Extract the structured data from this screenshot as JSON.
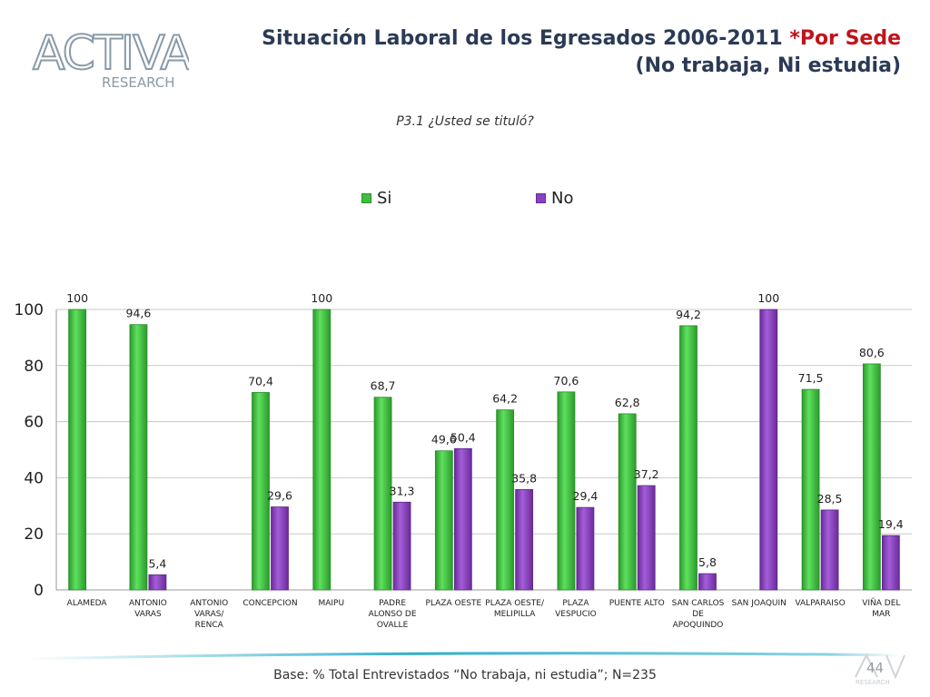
{
  "logo": {
    "word": "ACTIVA",
    "sub": "RESEARCH"
  },
  "header": {
    "title_main": "Situación Laboral de los Egresados 2006-2011 ",
    "title_accent": "*Por Sede",
    "title_line2": "(No trabaja, Ni estudia)"
  },
  "colors": {
    "si": "#3cbf3c",
    "no": "#8b3fc2",
    "title": "#2b3a55",
    "accent": "#c0141c",
    "footer": "#17a5c8"
  },
  "chart_data": {
    "type": "bar",
    "title": "P3.1 ¿Usted se tituló?",
    "categories": [
      [
        "ALAMEDA"
      ],
      [
        "ANTONIO",
        "VARAS"
      ],
      [
        "ANTONIO",
        "VARAS/",
        "RENCA"
      ],
      [
        "CONCEPCION"
      ],
      [
        "MAIPU"
      ],
      [
        "PADRE",
        "ALONSO DE",
        "OVALLE"
      ],
      [
        "PLAZA OESTE"
      ],
      [
        "PLAZA OESTE/",
        "MELIPILLA"
      ],
      [
        "PLAZA",
        "VESPUCIO"
      ],
      [
        "PUENTE ALTO"
      ],
      [
        "SAN CARLOS",
        "DE",
        "APOQUINDO"
      ],
      [
        "SAN JOAQUIN"
      ],
      [
        "VALPARAISO"
      ],
      [
        "VIÑA DEL",
        "MAR"
      ]
    ],
    "series": [
      {
        "name": "Si",
        "values": [
          100,
          94.6,
          null,
          70.4,
          100,
          68.7,
          49.6,
          64.2,
          70.6,
          62.8,
          94.2,
          null,
          71.5,
          80.6
        ]
      },
      {
        "name": "No",
        "values": [
          null,
          5.4,
          null,
          29.6,
          null,
          31.3,
          50.4,
          35.8,
          29.4,
          37.2,
          5.8,
          100,
          28.5,
          19.4
        ]
      }
    ],
    "ylim": [
      0,
      100
    ],
    "yticks": [
      0,
      20,
      40,
      60,
      80,
      100
    ],
    "xlabel": "",
    "ylabel": "",
    "legend_position": "top",
    "decimal_separator": ","
  },
  "footer": {
    "base": "Base: % Total Entrevistados “No trabaja, ni estudia”; N=235",
    "page_number": "44"
  }
}
